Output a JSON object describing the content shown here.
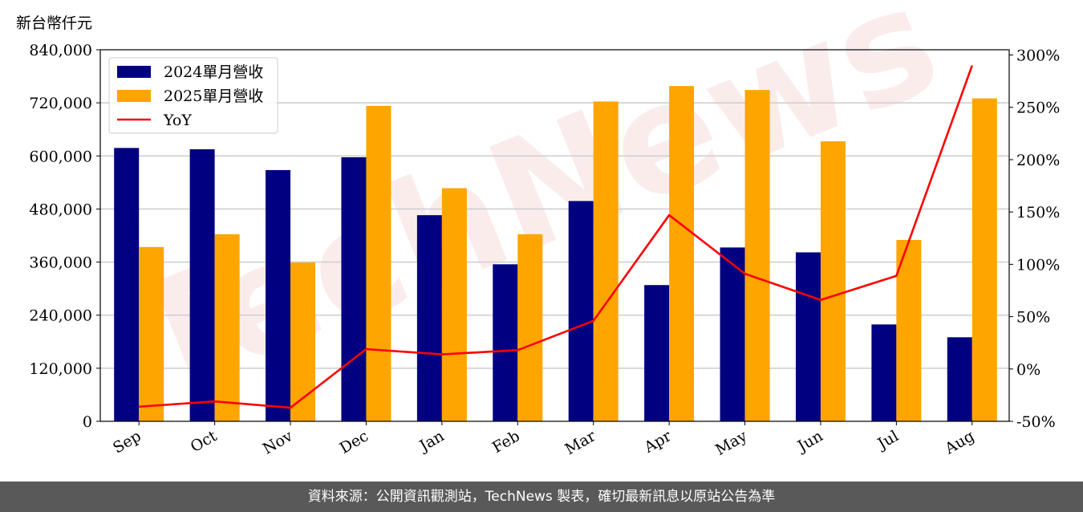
{
  "unit_label": "新台幣仟元",
  "footer": "資料來源：公開資訊觀測站，TechNews 製表，確切最新訊息以原站公告為準",
  "watermark": "TechNews",
  "colors": {
    "series_2024": "#000080",
    "series_2025": "#FFA500",
    "yoy": "#FF0000"
  },
  "chart_data": {
    "type": "bar",
    "categories": [
      "Sep",
      "Oct",
      "Nov",
      "Dec",
      "Jan",
      "Feb",
      "Mar",
      "Apr",
      "May",
      "Jun",
      "Jul",
      "Aug"
    ],
    "series": [
      {
        "name": "2024單月營收",
        "type": "bar",
        "axis": "left",
        "values": [
          618000,
          615000,
          568000,
          597000,
          466000,
          355000,
          498000,
          308000,
          393000,
          382000,
          219000,
          190000
        ]
      },
      {
        "name": "2025單月營收",
        "type": "bar",
        "axis": "left",
        "values": [
          394000,
          423000,
          359000,
          713000,
          527000,
          423000,
          723000,
          758000,
          749000,
          633000,
          410000,
          730000
        ]
      },
      {
        "name": "YoY",
        "type": "line",
        "axis": "right",
        "unit": "%",
        "values": [
          -36,
          -31,
          -37,
          19,
          14,
          18,
          46,
          147,
          91,
          66,
          89,
          290
        ]
      }
    ],
    "ylim_left": [
      0,
      840000
    ],
    "yticks_left": [
      "0",
      "120,000",
      "240,000",
      "360,000",
      "480,000",
      "600,000",
      "720,000",
      "840,000"
    ],
    "ylim_right": [
      -50,
      305
    ],
    "yticks_right": [
      "-50%",
      "0%",
      "50%",
      "100%",
      "150%",
      "200%",
      "250%",
      "300%"
    ],
    "grid": "horizontal",
    "legend": "top-left"
  }
}
